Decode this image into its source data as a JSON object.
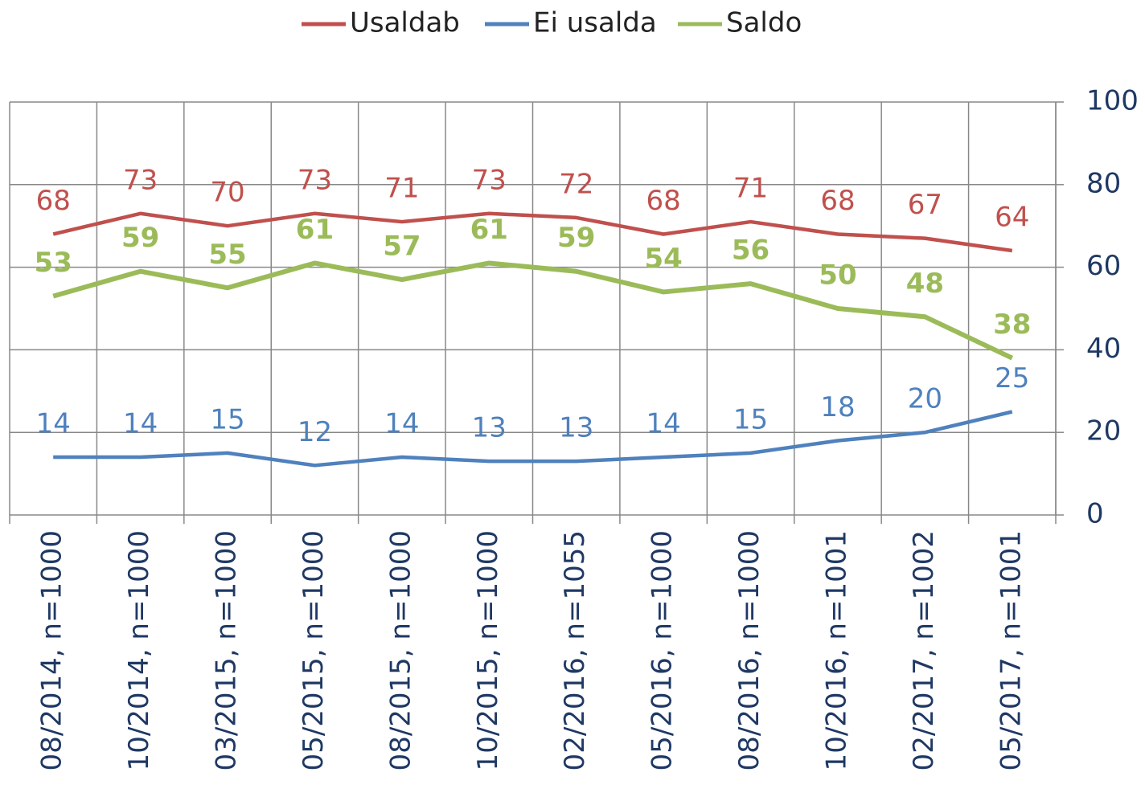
{
  "chart_data": {
    "type": "line",
    "categories": [
      "08/2014, n=1000",
      "10/2014, n=1000",
      "03/2015, n=1000",
      "05/2015, n=1000",
      "08/2015, n=1000",
      "10/2015, n=1000",
      "02/2016, n=1055",
      "05/2016, n=1000",
      "08/2016, n=1000",
      "10/2016, n=1001",
      "02/2017, n=1002",
      "05/2017, n=1001"
    ],
    "series": [
      {
        "name": "Usaldab",
        "color": "#c0504d",
        "values": [
          68,
          73,
          70,
          73,
          71,
          73,
          72,
          68,
          71,
          68,
          67,
          64
        ]
      },
      {
        "name": "Ei usalda",
        "color": "#4f81bd",
        "values": [
          14,
          14,
          15,
          12,
          14,
          13,
          13,
          14,
          15,
          18,
          20,
          25
        ]
      },
      {
        "name": "Saldo",
        "color": "#9bbb59",
        "values": [
          53,
          59,
          55,
          61,
          57,
          61,
          59,
          54,
          56,
          50,
          48,
          38
        ]
      }
    ],
    "ylim": [
      0,
      100
    ],
    "yticks": [
      0,
      20,
      40,
      60,
      80,
      100
    ],
    "grid": true,
    "legend": "top"
  }
}
